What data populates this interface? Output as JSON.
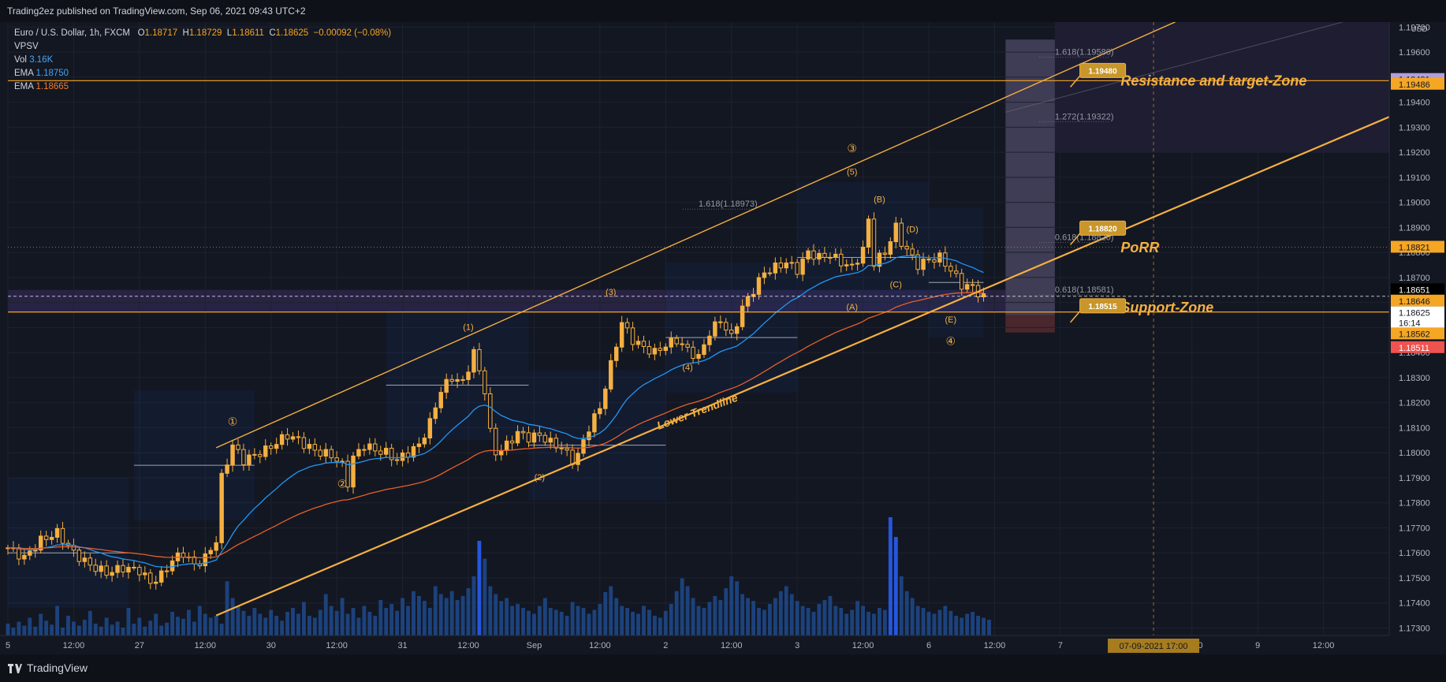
{
  "header": {
    "published": "Trading2ez published on TradingView.com, Sep 06, 2021 09:43 UTC+2"
  },
  "legend": {
    "symbol": "Euro / U.S. Dollar, 1h, FXCM",
    "o_label": "O",
    "o": "1.18717",
    "h_label": "H",
    "h": "1.18729",
    "l_label": "L",
    "l": "1.18611",
    "c_label": "C",
    "c": "1.18625",
    "change": "−0.00092 (−0.08%)",
    "vpsv": "VPSV",
    "vol_label": "Vol",
    "vol": "3.16K",
    "ema_label": "EMA",
    "ema1": "1.18750",
    "ema2": "1.18665"
  },
  "footer": {
    "brand": "TradingView"
  },
  "colors": {
    "background": "#131722",
    "candle": "#f5b041",
    "accent": "#f5a623",
    "ema_fast": "#2196f3",
    "ema_slow": "#e65f2b",
    "volume": "#2962ff"
  },
  "chart_data": {
    "type": "candlestick",
    "instrument": "Euro / U.S. Dollar, 1h, FXCM",
    "ylim": [
      1.1727,
      1.1972
    ],
    "y_ticks": [
      "1.17300",
      "1.17400",
      "1.17500",
      "1.17600",
      "1.17700",
      "1.17800",
      "1.17900",
      "1.18000",
      "1.18100",
      "1.18200",
      "1.18300",
      "1.18400",
      "1.18500",
      "1.18600",
      "1.18700",
      "1.18800",
      "1.18900",
      "1.19000",
      "1.19100",
      "1.19200",
      "1.19300",
      "1.19400",
      "1.19500",
      "1.19600",
      "1.19700"
    ],
    "y_axis_unit": "USD",
    "x_ticks": [
      {
        "label": "5",
        "t": 0
      },
      {
        "label": "12:00",
        "t": 12
      },
      {
        "label": "27",
        "t": 24
      },
      {
        "label": "12:00",
        "t": 36
      },
      {
        "label": "30",
        "t": 48
      },
      {
        "label": "12:00",
        "t": 60
      },
      {
        "label": "31",
        "t": 72
      },
      {
        "label": "12:00",
        "t": 84
      },
      {
        "label": "Sep",
        "t": 96
      },
      {
        "label": "12:00",
        "t": 108
      },
      {
        "label": "2",
        "t": 120
      },
      {
        "label": "12:00",
        "t": 132
      },
      {
        "label": "3",
        "t": 144
      },
      {
        "label": "12:00",
        "t": 156
      },
      {
        "label": "6",
        "t": 168
      },
      {
        "label": "12:00",
        "t": 180
      },
      {
        "label": "7",
        "t": 192
      },
      {
        "label": "12:00",
        "t": 216
      },
      {
        "label": "9",
        "t": 228
      },
      {
        "label": "12:00",
        "t": 240
      }
    ],
    "cursor_label": "07-09-2021  17:00",
    "cursor_t": 209,
    "price_path": [
      [
        0,
        1.1762
      ],
      [
        3,
        1.1758
      ],
      [
        6,
        1.1765
      ],
      [
        9,
        1.1768
      ],
      [
        12,
        1.176
      ],
      [
        15,
        1.1755
      ],
      [
        18,
        1.1752
      ],
      [
        21,
        1.1754
      ],
      [
        24,
        1.1753
      ],
      [
        26,
        1.1748
      ],
      [
        28,
        1.1751
      ],
      [
        30,
        1.1757
      ],
      [
        32,
        1.176
      ],
      [
        34,
        1.1755
      ],
      [
        36,
        1.1758
      ],
      [
        38,
        1.1765
      ],
      [
        39,
        1.179
      ],
      [
        41,
        1.1803
      ],
      [
        43,
        1.1797
      ],
      [
        45,
        1.1799
      ],
      [
        47,
        1.1801
      ],
      [
        49,
        1.1804
      ],
      [
        51,
        1.1807
      ],
      [
        53,
        1.1805
      ],
      [
        55,
        1.1802
      ],
      [
        57,
        1.18
      ],
      [
        59,
        1.1799
      ],
      [
        61,
        1.1795
      ],
      [
        62,
        1.1788
      ],
      [
        63,
        1.1798
      ],
      [
        65,
        1.1803
      ],
      [
        67,
        1.1801
      ],
      [
        69,
        1.18
      ],
      [
        71,
        1.1797
      ],
      [
        73,
        1.18
      ],
      [
        75,
        1.1803
      ],
      [
        77,
        1.1812
      ],
      [
        79,
        1.1825
      ],
      [
        81,
        1.183
      ],
      [
        83,
        1.1828
      ],
      [
        85,
        1.184
      ],
      [
        87,
        1.1825
      ],
      [
        88,
        1.1808
      ],
      [
        89,
        1.18
      ],
      [
        91,
        1.1803
      ],
      [
        93,
        1.1808
      ],
      [
        95,
        1.1806
      ],
      [
        97,
        1.1807
      ],
      [
        99,
        1.1804
      ],
      [
        101,
        1.1802
      ],
      [
        103,
        1.1797
      ],
      [
        104,
        1.1799
      ],
      [
        106,
        1.181
      ],
      [
        108,
        1.1818
      ],
      [
        110,
        1.1835
      ],
      [
        112,
        1.1852
      ],
      [
        114,
        1.1845
      ],
      [
        116,
        1.1842
      ],
      [
        118,
        1.184
      ],
      [
        120,
        1.1843
      ],
      [
        122,
        1.1845
      ],
      [
        124,
        1.1841
      ],
      [
        126,
        1.1838
      ],
      [
        128,
        1.1848
      ],
      [
        130,
        1.1853
      ],
      [
        132,
        1.1846
      ],
      [
        134,
        1.1858
      ],
      [
        136,
        1.1865
      ],
      [
        138,
        1.1872
      ],
      [
        140,
        1.1874
      ],
      [
        142,
        1.1876
      ],
      [
        144,
        1.1873
      ],
      [
        146,
        1.188
      ],
      [
        148,
        1.1878
      ],
      [
        150,
        1.1879
      ],
      [
        152,
        1.1876
      ],
      [
        154,
        1.1874
      ],
      [
        156,
        1.1881
      ],
      [
        157,
        1.1893
      ],
      [
        158,
        1.1876
      ],
      [
        160,
        1.188
      ],
      [
        162,
        1.189
      ],
      [
        163,
        1.1884
      ],
      [
        164,
        1.1881
      ],
      [
        166,
        1.1875
      ],
      [
        168,
        1.1877
      ],
      [
        170,
        1.1878
      ],
      [
        172,
        1.1873
      ],
      [
        174,
        1.1867
      ],
      [
        176,
        1.1866
      ],
      [
        178,
        1.1862
      ]
    ],
    "horizontal_levels": [
      {
        "price": 1.19486,
        "label": "1.19486",
        "tag_color": "#f5a623"
      },
      {
        "price": 1.18562,
        "label": "1.18562",
        "tag_color": "#f5a623"
      }
    ],
    "price_tags": [
      {
        "label": "1.19491",
        "price": 1.19491,
        "bg": "#b39ddb",
        "fg": "#131722"
      },
      {
        "label": "1.19486",
        "price": 1.19472,
        "bg": "#f5a623",
        "fg": "#131722"
      },
      {
        "label": "1.18821",
        "price": 1.18821,
        "bg": "#f5a623",
        "fg": "#131722"
      },
      {
        "label": "1.18651",
        "price": 1.18651,
        "bg": "#000000",
        "fg": "#ffffff"
      },
      {
        "label": "1.18646",
        "price": 1.18606,
        "bg": "#f5a623",
        "fg": "#131722"
      },
      {
        "label": "1.18625",
        "price": 1.18559,
        "bg": "#ffffff",
        "fg": "#131722",
        "sub": "16:14"
      },
      {
        "label": "1.18562",
        "price": 1.18475,
        "bg": "#f5a623",
        "fg": "#131722"
      },
      {
        "label": "1.18511",
        "price": 1.1842,
        "bg": "#ef5350",
        "fg": "#ffffff"
      }
    ],
    "channel": {
      "upper": [
        [
          38,
          1.1802
        ],
        [
          216,
          1.1975
        ]
      ],
      "lower": [
        [
          38,
          1.1735
        ],
        [
          254,
          1.1936
        ]
      ]
    },
    "fib_labels": [
      {
        "text": "1.618(1.19580)",
        "t": 191,
        "price": 1.1958
      },
      {
        "text": "1.272(1.19322)",
        "t": 191,
        "price": 1.19322
      },
      {
        "text": "1.618(1.18973)",
        "t": 126,
        "price": 1.18973
      },
      {
        "text": "0.618(1.18820)",
        "t": 191,
        "price": 1.1884
      },
      {
        "text": "0.618(1.18581)",
        "t": 191,
        "price": 1.1863
      }
    ],
    "wave_labels": [
      {
        "text": "①",
        "t": 41,
        "price": 1.1811
      },
      {
        "text": "②",
        "t": 61,
        "price": 1.1786
      },
      {
        "text": "(1)",
        "t": 84,
        "price": 1.1849
      },
      {
        "text": "(2)",
        "t": 97,
        "price": 1.1789
      },
      {
        "text": "(3)",
        "t": 110,
        "price": 1.1863
      },
      {
        "text": "(4)",
        "t": 124,
        "price": 1.1833
      },
      {
        "text": "③",
        "t": 154,
        "price": 1.192
      },
      {
        "text": "(5)",
        "t": 154,
        "price": 1.1911
      },
      {
        "text": "(B)",
        "t": 159,
        "price": 1.19
      },
      {
        "text": "(D)",
        "t": 165,
        "price": 1.1888
      },
      {
        "text": "(C)",
        "t": 162,
        "price": 1.1866
      },
      {
        "text": "(A)",
        "t": 154,
        "price": 1.1857
      },
      {
        "text": "(E)",
        "t": 172,
        "price": 1.1852
      },
      {
        "text": "④",
        "t": 172,
        "price": 1.1843
      },
      {
        "text": "⑤",
        "t": 201,
        "price": 1.195
      }
    ],
    "annotations": [
      {
        "text": "Resistance and target-Zone",
        "t": 203,
        "price": 1.19485
      },
      {
        "text": "PoRR",
        "t": 203,
        "price": 1.1882
      },
      {
        "text": "Support-Zone",
        "t": 203,
        "price": 1.1858
      },
      {
        "text": "Lower Trendline",
        "t": 126,
        "price": 1.1815
      }
    ],
    "callouts": [
      {
        "text": "1.19480",
        "t": 197,
        "price": 1.1953
      },
      {
        "text": "1.18820",
        "t": 197,
        "price": 1.189
      },
      {
        "text": "1.18515",
        "t": 197,
        "price": 1.1859
      }
    ],
    "volume": [
      12,
      8,
      14,
      10,
      18,
      9,
      22,
      15,
      11,
      30,
      8,
      20,
      14,
      10,
      16,
      25,
      12,
      9,
      18,
      11,
      14,
      8,
      28,
      12,
      18,
      9,
      15,
      22,
      10,
      13,
      24,
      19,
      17,
      26,
      14,
      30,
      22,
      18,
      20,
      12,
      55,
      38,
      30,
      25,
      20,
      28,
      22,
      18,
      26,
      20,
      15,
      24,
      28,
      22,
      34,
      20,
      18,
      26,
      42,
      30,
      25,
      38,
      22,
      28,
      18,
      30,
      24,
      20,
      36,
      28,
      32,
      25,
      38,
      30,
      45,
      40,
      35,
      28,
      50,
      42,
      38,
      45,
      36,
      40,
      48,
      60,
      96,
      78,
      50,
      42,
      35,
      38,
      30,
      32,
      28,
      25,
      22,
      30,
      38,
      28,
      26,
      24,
      20,
      34,
      30,
      28,
      22,
      26,
      32,
      44,
      50,
      38,
      30,
      28,
      24,
      22,
      30,
      26,
      20,
      18,
      25,
      32,
      45,
      58,
      50,
      38,
      30,
      28,
      34,
      40,
      36,
      48,
      60,
      55,
      42,
      38,
      35,
      28,
      26,
      32,
      38,
      45,
      50,
      42,
      35,
      30,
      28,
      24,
      32,
      36,
      40,
      30,
      28,
      22,
      26,
      35,
      30,
      24,
      22,
      28,
      26,
      120,
      100,
      60,
      45,
      38,
      30,
      28,
      24,
      22,
      26,
      30,
      25,
      20,
      18,
      22,
      24,
      20,
      18,
      16
    ]
  }
}
